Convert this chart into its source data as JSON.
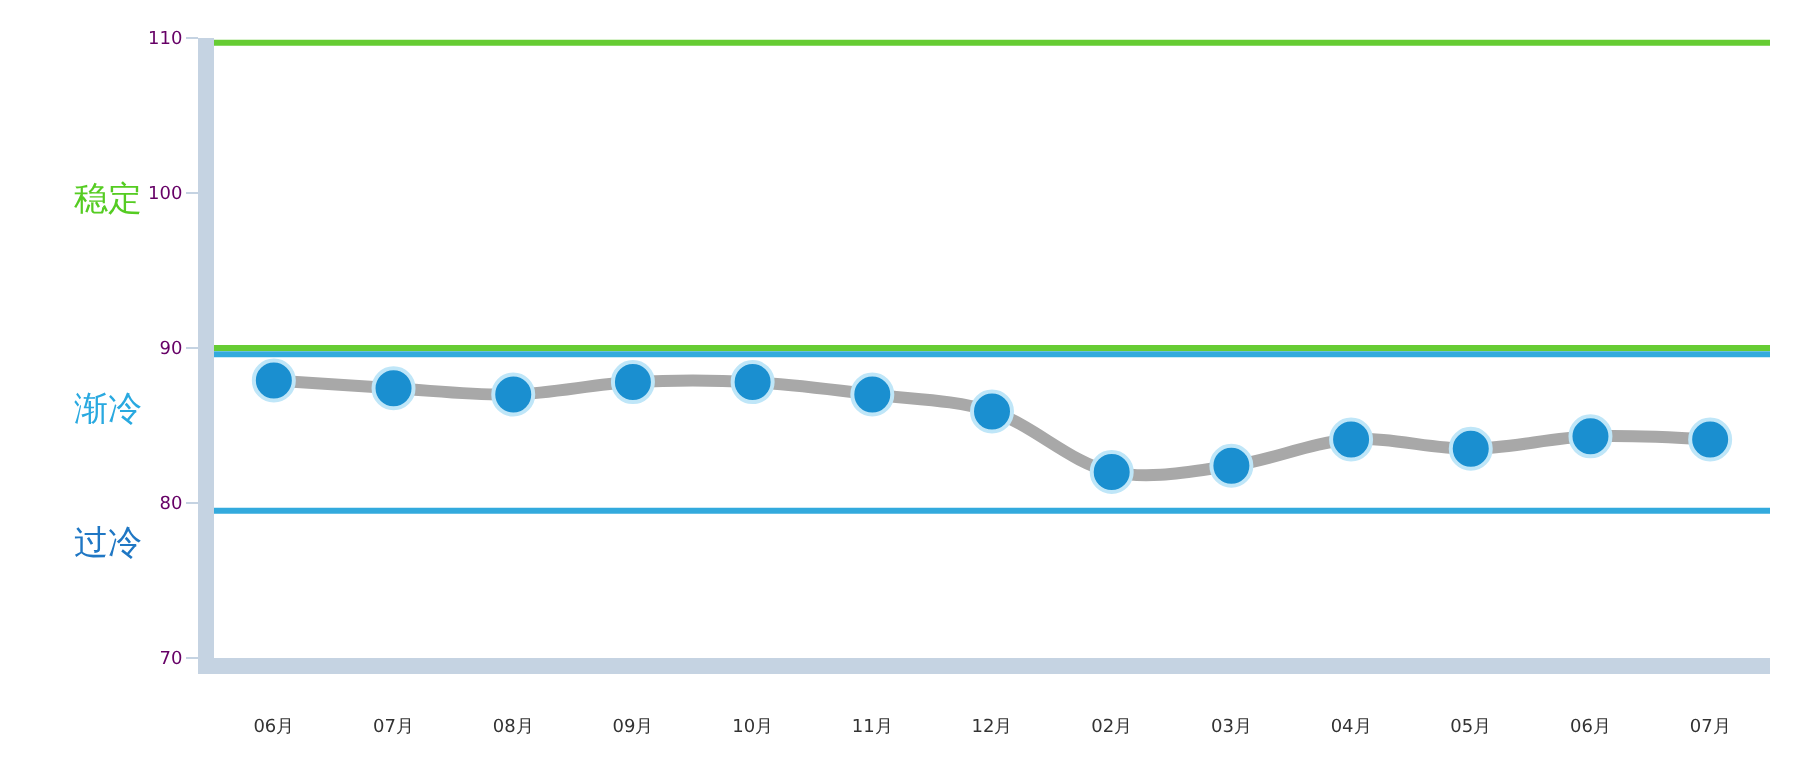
{
  "chart_data": {
    "type": "line",
    "categories": [
      "06月",
      "07月",
      "08月",
      "09月",
      "10月",
      "11月",
      "12月",
      "02月",
      "03月",
      "04月",
      "05月",
      "06月",
      "07月"
    ],
    "series": [
      {
        "color": "#1a8fd0",
        "values": [
          87.9,
          87.4,
          87.0,
          87.8,
          87.8,
          87.0,
          85.9,
          82.0,
          82.4,
          84.1,
          83.5,
          84.3,
          84.1
        ]
      }
    ],
    "ylim": [
      70,
      110
    ],
    "yticks": [
      70,
      80,
      90,
      100,
      110
    ],
    "grid": false,
    "marker": "circle",
    "line_style": "solid",
    "ref_lines": [
      {
        "axis": "y",
        "value": 109.7,
        "color": "#66cc33"
      },
      {
        "axis": "y",
        "value": 90.0,
        "color": "#66cc33"
      },
      {
        "axis": "y",
        "value": 89.6,
        "color": "#33aadd"
      },
      {
        "axis": "y",
        "value": 79.5,
        "color": "#33aadd"
      }
    ],
    "annotations": [
      "稳定",
      "渐冷",
      "过冷"
    ]
  }
}
